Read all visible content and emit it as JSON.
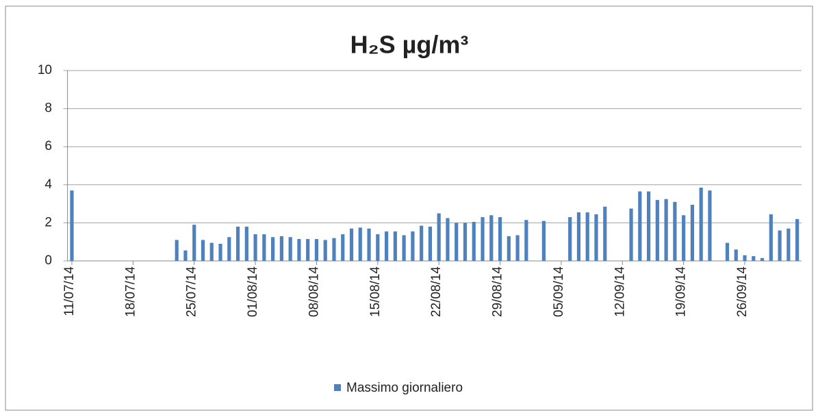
{
  "chart_data": {
    "type": "bar",
    "title": "H₂S µg/m³",
    "categories": [
      "11/07/14",
      null,
      null,
      null,
      null,
      null,
      null,
      "18/07/14",
      null,
      null,
      null,
      null,
      null,
      null,
      "25/07/14",
      null,
      null,
      null,
      null,
      null,
      null,
      "01/08/14",
      null,
      null,
      null,
      null,
      null,
      null,
      "08/08/14",
      null,
      null,
      null,
      null,
      null,
      null,
      "15/08/14",
      null,
      null,
      null,
      null,
      null,
      null,
      "22/08/14",
      null,
      null,
      null,
      null,
      null,
      null,
      "29/08/14",
      null,
      null,
      null,
      null,
      null,
      null,
      "05/09/14",
      null,
      null,
      null,
      null,
      null,
      null,
      "12/09/14",
      null,
      null,
      null,
      null,
      null,
      null,
      "19/09/14",
      null,
      null,
      null,
      null,
      null,
      null,
      "26/09/14",
      null,
      null,
      null,
      null,
      null,
      null
    ],
    "series": [
      {
        "name": "Massimo giornaliero",
        "color": "#4f81bd",
        "values": [
          3.7,
          null,
          null,
          null,
          null,
          null,
          null,
          null,
          null,
          null,
          null,
          null,
          1.1,
          0.55,
          1.9,
          1.1,
          0.95,
          0.9,
          1.25,
          1.8,
          1.8,
          1.4,
          1.4,
          1.25,
          1.3,
          1.25,
          1.15,
          1.15,
          1.15,
          1.1,
          1.2,
          1.4,
          1.7,
          1.75,
          1.7,
          1.4,
          1.55,
          1.55,
          1.35,
          1.55,
          1.85,
          1.8,
          2.5,
          2.25,
          2.0,
          2.0,
          2.05,
          2.3,
          2.4,
          2.3,
          1.3,
          1.35,
          2.15,
          null,
          2.1,
          null,
          null,
          2.3,
          2.55,
          2.55,
          2.45,
          2.85,
          null,
          null,
          2.75,
          3.65,
          3.65,
          3.2,
          3.25,
          3.1,
          2.4,
          2.95,
          3.85,
          3.7,
          null,
          0.95,
          0.6,
          0.3,
          0.25,
          0.15,
          2.45,
          1.6,
          1.7,
          2.2
        ]
      }
    ],
    "ylim": [
      0,
      10
    ],
    "yticks": [
      0,
      2,
      4,
      6,
      8,
      10
    ],
    "grid": true,
    "legend": "bottom"
  }
}
